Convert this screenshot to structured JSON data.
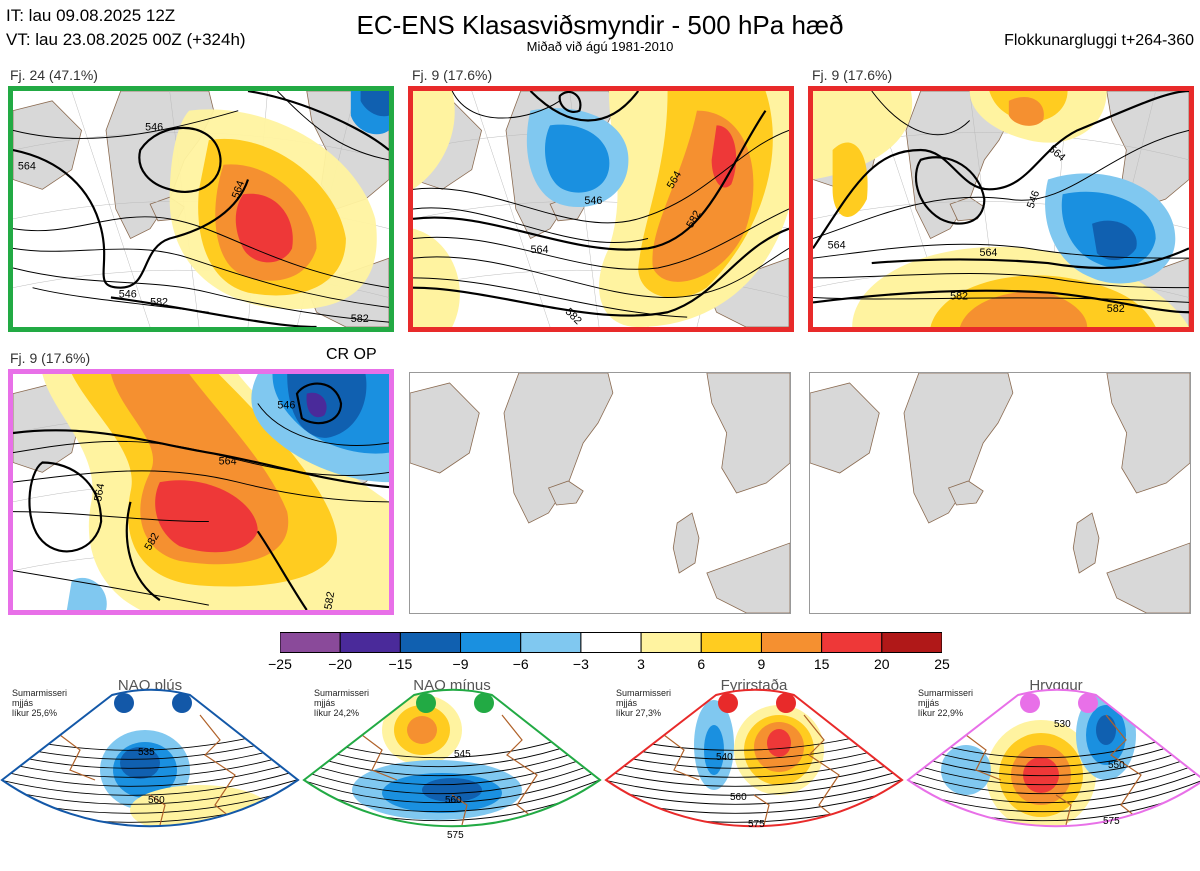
{
  "header": {
    "init_time": "IT: lau 09.08.2025 12Z",
    "valid_time": "VT: lau 23.08.2025 00Z  (+324h)",
    "title": "EC-ENS Klasasviðsmyndir - 500 hPa hæð",
    "subtitle": "Miðað við ágú 1981-2010",
    "window": "Flokkunargluggi t+264-360"
  },
  "clusters": [
    {
      "label": "Fj. 24 (47.1%)",
      "border": "#22aa44",
      "contours": [
        "546",
        "564",
        "582",
        "564",
        "546",
        "582"
      ]
    },
    {
      "label": "Fj. 9 (17.6%)",
      "border": "#e82a2a",
      "contours": [
        "546",
        "564",
        "582",
        "564",
        "582"
      ]
    },
    {
      "label": "Fj. 9 (17.6%)",
      "border": "#e82a2a",
      "contours": [
        "564",
        "546",
        "564",
        "582",
        "582",
        "564"
      ]
    },
    {
      "label": "Fj. 9 (17.6%)",
      "border": "#e870e8",
      "tag": "CR OP",
      "contours": [
        "546",
        "564",
        "564",
        "582",
        "582"
      ]
    }
  ],
  "colorbar": {
    "labels": [
      "−25",
      "−20",
      "−15",
      "−9",
      "−6",
      "−3",
      "3",
      "6",
      "9",
      "15",
      "20",
      "25"
    ],
    "colors": [
      "#8a4a9a",
      "#4a2a9a",
      "#1060b0",
      "#1a90e0",
      "#80c8f0",
      "#ffffff",
      "#fff3a0",
      "#ffcc20",
      "#f59030",
      "#ee3838",
      "#b01818"
    ]
  },
  "regimes": [
    {
      "name": "NAO plús",
      "season": "Sumarmisseri",
      "smoothed": "mjjás",
      "likelihood": "líkur 25,6%",
      "color": "#1358a8",
      "contours": [
        "535",
        "560"
      ]
    },
    {
      "name": "NAO mínus",
      "season": "Sumarmisseri",
      "smoothed": "mjjás",
      "likelihood": "líkur 24,2%",
      "color": "#22aa44",
      "contours": [
        "545",
        "560",
        "575"
      ]
    },
    {
      "name": "Fyrirstaða",
      "season": "Sumarmisseri",
      "smoothed": "mjjás",
      "likelihood": "líkur 27,3%",
      "color": "#e82a2a",
      "contours": [
        "540",
        "560",
        "575"
      ]
    },
    {
      "name": "Hryggur",
      "season": "Sumarmisseri",
      "smoothed": "mjjás",
      "likelihood": "líkur 22,9%",
      "color": "#e870e8",
      "contours": [
        "530",
        "550",
        "575"
      ]
    }
  ]
}
